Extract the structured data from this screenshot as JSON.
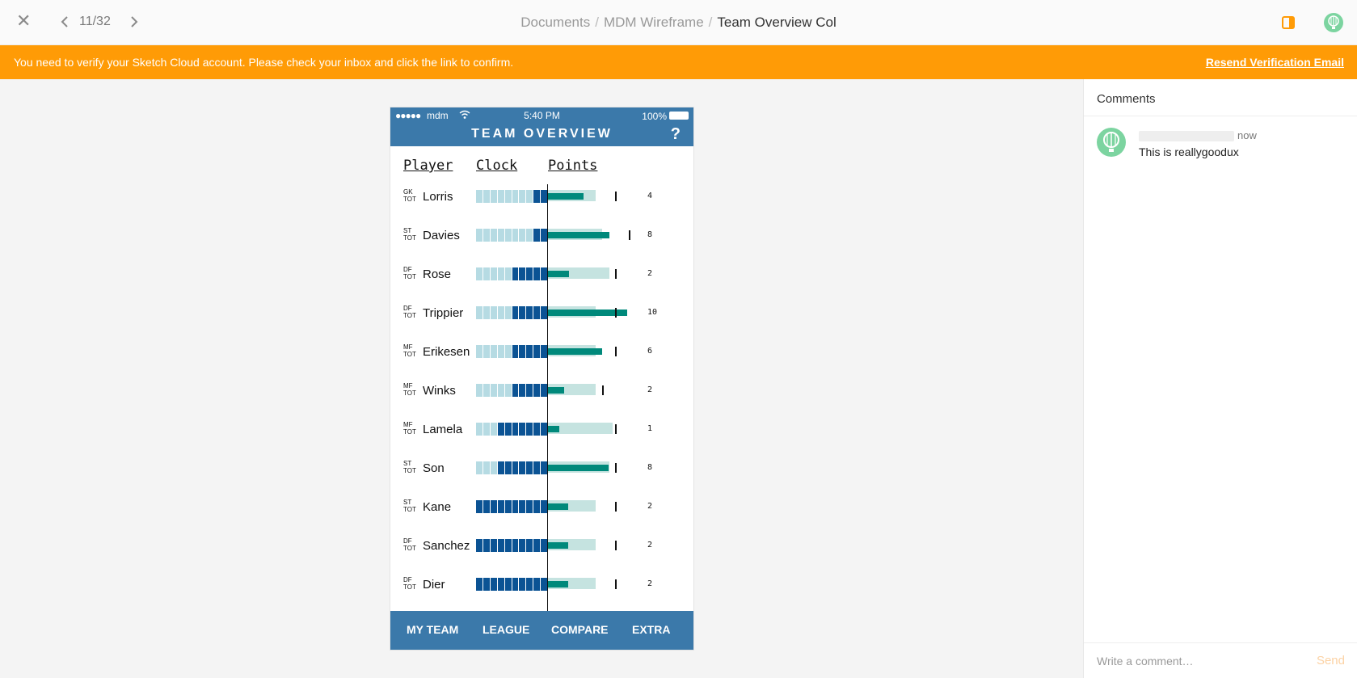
{
  "topbar": {
    "close_icon": "✕",
    "page_counter": "11/32",
    "breadcrumb": [
      "Documents",
      "MDM Wireframe"
    ],
    "current_artboard": "Team Overview Col"
  },
  "banner": {
    "message": "You need to verify your Sketch Cloud account. Please check your inbox and click the link to confirm.",
    "action": "Resend Verification Email",
    "color": "#ff9b06"
  },
  "phone": {
    "status": {
      "dots": "●●●●●",
      "carrier": "mdm",
      "time": "5:40 PM",
      "battery": "100%"
    },
    "title": "TEAM OVERVIEW",
    "help": "?",
    "columns": {
      "player": "Player",
      "clock": "Clock",
      "points": "Points"
    },
    "rows": [
      {
        "pos": "GK",
        "team": "TOT",
        "name": "Lorris",
        "clock_dark": 2,
        "pts_bg": 0.6,
        "pts_bar": 0.45,
        "tick": 0.85,
        "points": "4"
      },
      {
        "pos": "ST",
        "team": "TOT",
        "name": "Davies",
        "clock_dark": 2,
        "pts_bg": 0.68,
        "pts_bar": 0.78,
        "tick": 1.02,
        "points": "8"
      },
      {
        "pos": "DF",
        "team": "TOT",
        "name": "Rose",
        "clock_dark": 5,
        "pts_bg": 0.78,
        "pts_bar": 0.27,
        "tick": 0.85,
        "points": "2"
      },
      {
        "pos": "DF",
        "team": "TOT",
        "name": "Trippier",
        "clock_dark": 5,
        "pts_bg": 0.6,
        "pts_bar": 1.0,
        "tick": 0.85,
        "points": "10"
      },
      {
        "pos": "MF",
        "team": "TOT",
        "name": "Erikesen",
        "clock_dark": 5,
        "pts_bg": 0.6,
        "pts_bar": 0.68,
        "tick": 0.85,
        "points": "6"
      },
      {
        "pos": "MF",
        "team": "TOT",
        "name": "Winks",
        "clock_dark": 5,
        "pts_bg": 0.6,
        "pts_bar": 0.2,
        "tick": 0.68,
        "points": "2"
      },
      {
        "pos": "MF",
        "team": "TOT",
        "name": "Lamela",
        "clock_dark": 7,
        "pts_bg": 0.82,
        "pts_bar": 0.14,
        "tick": 0.85,
        "points": "1"
      },
      {
        "pos": "ST",
        "team": "TOT",
        "name": "Son",
        "clock_dark": 7,
        "pts_bg": 0.78,
        "pts_bar": 0.77,
        "tick": 0.85,
        "points": "8"
      },
      {
        "pos": "ST",
        "team": "TOT",
        "name": "Kane",
        "clock_dark": 10,
        "pts_bg": 0.6,
        "pts_bar": 0.26,
        "tick": 0.85,
        "points": "2"
      },
      {
        "pos": "DF",
        "team": "TOT",
        "name": "Sanchez",
        "clock_dark": 10,
        "pts_bg": 0.6,
        "pts_bar": 0.26,
        "tick": 0.85,
        "points": "2"
      },
      {
        "pos": "DF",
        "team": "TOT",
        "name": "Dier",
        "clock_dark": 10,
        "pts_bg": 0.6,
        "pts_bar": 0.26,
        "tick": 0.85,
        "points": "2"
      }
    ],
    "tabs": [
      "MY TEAM",
      "LEAGUE",
      "COMPARE",
      "EXTRA"
    ],
    "colors": {
      "header": "#3b79aa",
      "clock_light": "#b6dbe3",
      "clock_dark": "#0b5394",
      "points_bg": "#c5e3e0",
      "points_bar": "#00897b"
    }
  },
  "comments": {
    "title": "Comments",
    "items": [
      {
        "time": "now",
        "text": "This is reallygoodux"
      }
    ],
    "composer_placeholder": "Write a comment…",
    "send_label": "Send"
  }
}
